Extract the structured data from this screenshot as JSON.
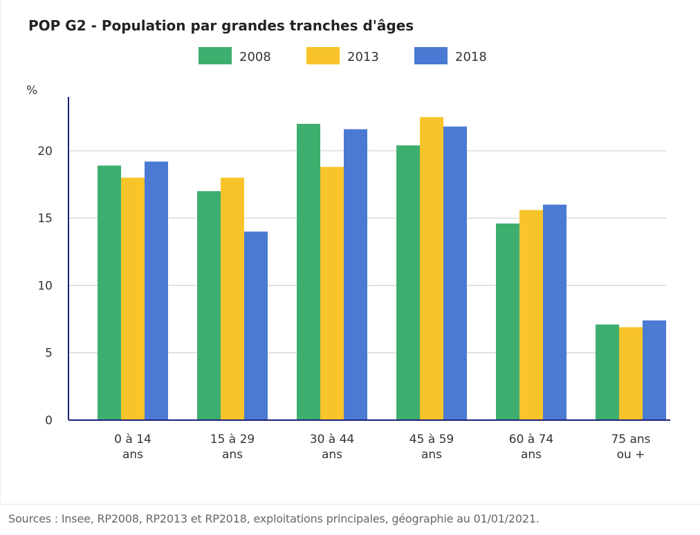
{
  "colors": {
    "series_2008": "#3dae6e",
    "series_2013": "#f8c42a",
    "series_2018": "#4a7ad4",
    "axis": "#1f1f7a",
    "grid": "#c9c9c9",
    "text": "#333333"
  },
  "chart_data": {
    "type": "bar",
    "title": "POP G2 - Population par grandes tranches d'âges",
    "ylabel": "%",
    "xlabel": "",
    "ylim": [
      0,
      24
    ],
    "yticks": [
      "0",
      "5",
      "10",
      "15",
      "20"
    ],
    "grid": true,
    "legend_position": "top-center",
    "categories": [
      [
        "0 à 14",
        "ans"
      ],
      [
        "15 à 29",
        "ans"
      ],
      [
        "30 à 44",
        "ans"
      ],
      [
        "45 à 59",
        "ans"
      ],
      [
        "60 à 74",
        "ans"
      ],
      [
        "75 ans",
        "ou +"
      ]
    ],
    "series": [
      {
        "name": "2008",
        "values": [
          18.9,
          17.0,
          22.0,
          20.4,
          14.6,
          7.1
        ]
      },
      {
        "name": "2013",
        "values": [
          18.0,
          18.0,
          18.8,
          22.5,
          15.6,
          6.9
        ]
      },
      {
        "name": "2018",
        "values": [
          19.2,
          14.0,
          21.6,
          21.8,
          16.0,
          7.4
        ]
      }
    ]
  },
  "footer": {
    "source": "Sources : Insee, RP2008, RP2013 et RP2018, exploitations principales, géographie au 01/01/2021."
  }
}
